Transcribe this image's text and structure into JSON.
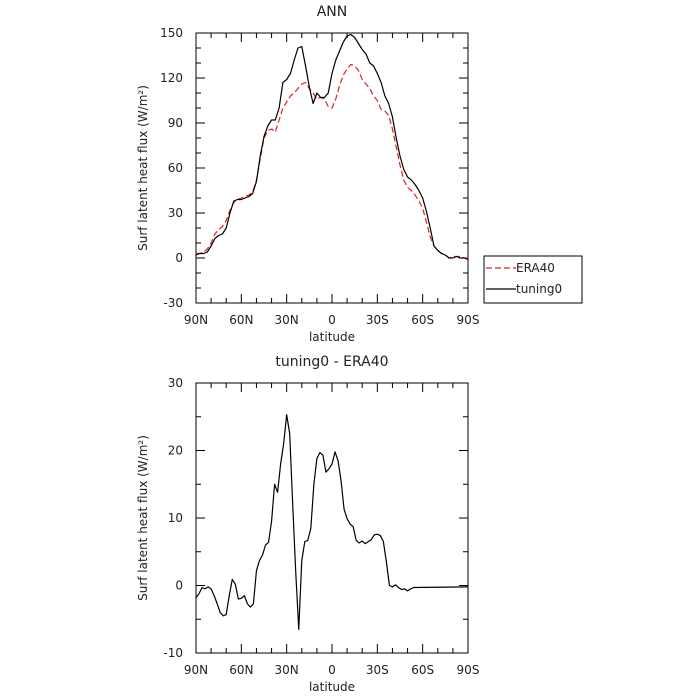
{
  "chart_data": [
    {
      "type": "line",
      "title": "ANN",
      "xlabel": "latitude",
      "ylabel": "Surf latent heat flux (W/m²)",
      "xlim": [
        90,
        -90
      ],
      "ylim": [
        -30,
        150
      ],
      "xticks": [
        90,
        60,
        30,
        0,
        -30,
        -60,
        -90
      ],
      "xtick_labels": [
        "90N",
        "60N",
        "30N",
        "0",
        "30S",
        "60S",
        "90S"
      ],
      "yticks": [
        -30,
        0,
        30,
        60,
        90,
        120,
        150
      ],
      "ytick_labels": [
        "-30",
        "0",
        "30",
        "60",
        "90",
        "120",
        "150"
      ],
      "legend_position": "right",
      "series": [
        {
          "name": "ERA40",
          "color": "#e02020",
          "dash": true,
          "points": [
            [
              90,
              3
            ],
            [
              87.5,
              3
            ],
            [
              85,
              4
            ],
            [
              82.5,
              6
            ],
            [
              80,
              10
            ],
            [
              77.5,
              16
            ],
            [
              75,
              19
            ],
            [
              72.5,
              21
            ],
            [
              70,
              25
            ],
            [
              67.5,
              32
            ],
            [
              65,
              37
            ],
            [
              62.5,
              39
            ],
            [
              60,
              40
            ],
            [
              57.5,
              41
            ],
            [
              55,
              42
            ],
            [
              52.5,
              44
            ],
            [
              50,
              52
            ],
            [
              47.5,
              66
            ],
            [
              45,
              80
            ],
            [
              42.5,
              85
            ],
            [
              40,
              86
            ],
            [
              37.5,
              84
            ],
            [
              35,
              92
            ],
            [
              32.5,
              100
            ],
            [
              30,
              104
            ],
            [
              27.5,
              108
            ],
            [
              25,
              110
            ],
            [
              22.5,
              113
            ],
            [
              20,
              116
            ],
            [
              17.5,
              117
            ],
            [
              15,
              113
            ],
            [
              12.5,
              110
            ],
            [
              10,
              106
            ],
            [
              7.5,
              107
            ],
            [
              5,
              106
            ],
            [
              2.5,
              101
            ],
            [
              0,
              100
            ],
            [
              -2.5,
              106
            ],
            [
              -5,
              115
            ],
            [
              -7.5,
              122
            ],
            [
              -10,
              126
            ],
            [
              -12.5,
              129
            ],
            [
              -15,
              128
            ],
            [
              -17.5,
              125
            ],
            [
              -20,
              119
            ],
            [
              -22.5,
              116
            ],
            [
              -25,
              113
            ],
            [
              -27.5,
              108
            ],
            [
              -30,
              105
            ],
            [
              -32.5,
              99
            ],
            [
              -35,
              98
            ],
            [
              -37.5,
              95
            ],
            [
              -40,
              86
            ],
            [
              -42.5,
              74
            ],
            [
              -45,
              62
            ],
            [
              -47.5,
              52
            ],
            [
              -50,
              47
            ],
            [
              -52.5,
              45
            ],
            [
              -55,
              42
            ],
            [
              -57.5,
              38
            ],
            [
              -60,
              33
            ],
            [
              -62.5,
              24
            ],
            [
              -65,
              14
            ],
            [
              -67.5,
              8
            ],
            [
              -70,
              5
            ],
            [
              -72.5,
              3
            ],
            [
              -75,
              2
            ],
            [
              -77.5,
              0
            ],
            [
              -80,
              1
            ],
            [
              -82.5,
              1
            ],
            [
              -85,
              1
            ],
            [
              -87.5,
              0
            ],
            [
              -90,
              0
            ]
          ]
        },
        {
          "name": "tuning0",
          "color": "#000000",
          "dash": false,
          "points": [
            [
              90,
              2
            ],
            [
              87.5,
              3
            ],
            [
              85,
              3
            ],
            [
              82.5,
              4
            ],
            [
              80,
              8
            ],
            [
              77.5,
              13
            ],
            [
              75,
              15
            ],
            [
              72.5,
              16
            ],
            [
              70,
              20
            ],
            [
              67.5,
              30
            ],
            [
              65,
              38
            ],
            [
              62.5,
              39
            ],
            [
              60,
              39
            ],
            [
              57.5,
              40
            ],
            [
              55,
              41
            ],
            [
              52.5,
              43
            ],
            [
              50,
              51
            ],
            [
              47.5,
              68
            ],
            [
              45,
              81
            ],
            [
              42.5,
              88
            ],
            [
              40,
              92
            ],
            [
              37.5,
              92
            ],
            [
              35,
              100
            ],
            [
              32.5,
              117
            ],
            [
              30,
              119
            ],
            [
              27.5,
              123
            ],
            [
              25,
              132
            ],
            [
              22.5,
              140
            ],
            [
              20,
              141
            ],
            [
              17.5,
              128
            ],
            [
              15,
              114
            ],
            [
              12.5,
              103
            ],
            [
              10,
              110
            ],
            [
              7.5,
              107
            ],
            [
              5,
              107
            ],
            [
              2.5,
              110
            ],
            [
              0,
              123
            ],
            [
              -2.5,
              132
            ],
            [
              -5,
              138
            ],
            [
              -7.5,
              144
            ],
            [
              -10,
              148
            ],
            [
              -12.5,
              149
            ],
            [
              -15,
              147
            ],
            [
              -17.5,
              143
            ],
            [
              -20,
              139
            ],
            [
              -22.5,
              136
            ],
            [
              -25,
              130
            ],
            [
              -27.5,
              128
            ],
            [
              -30,
              123
            ],
            [
              -32.5,
              117
            ],
            [
              -35,
              108
            ],
            [
              -37.5,
              103
            ],
            [
              -40,
              94
            ],
            [
              -42.5,
              80
            ],
            [
              -45,
              68
            ],
            [
              -47.5,
              59
            ],
            [
              -50,
              54
            ],
            [
              -52.5,
              52
            ],
            [
              -55,
              49
            ],
            [
              -57.5,
              45
            ],
            [
              -60,
              40
            ],
            [
              -62.5,
              31
            ],
            [
              -65,
              20
            ],
            [
              -67.5,
              8
            ],
            [
              -70,
              5
            ],
            [
              -72.5,
              3
            ],
            [
              -75,
              2
            ],
            [
              -77.5,
              0
            ],
            [
              -80,
              0
            ],
            [
              -82.5,
              1
            ],
            [
              -85,
              0
            ],
            [
              -87.5,
              0
            ],
            [
              -90,
              -1
            ]
          ]
        }
      ]
    },
    {
      "type": "line",
      "title": "tuning0 - ERA40",
      "xlabel": "latitude",
      "ylabel": "Surf latent heat flux (W/m²)",
      "xlim": [
        90,
        -90
      ],
      "ylim": [
        -10,
        30
      ],
      "xticks": [
        90,
        60,
        30,
        0,
        -30,
        -60,
        -90
      ],
      "xtick_labels": [
        "90N",
        "60N",
        "30N",
        "0",
        "30S",
        "60S",
        "90S"
      ],
      "yticks": [
        -10,
        0,
        10,
        20,
        30
      ],
      "ytick_labels": [
        "-10",
        "0",
        "10",
        "20",
        "30"
      ],
      "series": [
        {
          "color": "#000000",
          "dash": false,
          "points": [
            [
              90,
              -1.8
            ],
            [
              88,
              -1.2
            ],
            [
              86,
              -0.3
            ],
            [
              84,
              -0.5
            ],
            [
              82,
              -0.2
            ],
            [
              80,
              -0.5
            ],
            [
              78,
              -1.5
            ],
            [
              76,
              -2.7
            ],
            [
              74,
              -4.0
            ],
            [
              72,
              -4.5
            ],
            [
              70,
              -4.3
            ],
            [
              68,
              -1.5
            ],
            [
              66,
              0.9
            ],
            [
              64,
              0.2
            ],
            [
              62,
              -2.0
            ],
            [
              60,
              -1.9
            ],
            [
              58,
              -1.5
            ],
            [
              56,
              -2.7
            ],
            [
              54,
              -3.2
            ],
            [
              52,
              -2.7
            ],
            [
              50,
              2.2
            ],
            [
              48,
              3.7
            ],
            [
              46,
              4.5
            ],
            [
              44,
              6.0
            ],
            [
              42,
              6.4
            ],
            [
              40,
              9.5
            ],
            [
              38,
              15.0
            ],
            [
              36,
              13.8
            ],
            [
              34,
              18.0
            ],
            [
              32,
              21.0
            ],
            [
              30,
              25.3
            ],
            [
              28,
              22.5
            ],
            [
              26,
              12.0
            ],
            [
              24,
              2.0
            ],
            [
              22,
              -6.5
            ],
            [
              20,
              3.7
            ],
            [
              18,
              6.5
            ],
            [
              16,
              6.7
            ],
            [
              14,
              8.5
            ],
            [
              12,
              15.0
            ],
            [
              10,
              18.8
            ],
            [
              8,
              19.7
            ],
            [
              6,
              19.3
            ],
            [
              4,
              16.8
            ],
            [
              2,
              17.3
            ],
            [
              0,
              18.0
            ],
            [
              -2,
              19.8
            ],
            [
              -4,
              18.5
            ],
            [
              -6,
              15.5
            ],
            [
              -8,
              11.3
            ],
            [
              -10,
              9.9
            ],
            [
              -12,
              9.1
            ],
            [
              -14,
              8.7
            ],
            [
              -16,
              6.7
            ],
            [
              -18,
              6.3
            ],
            [
              -20,
              6.6
            ],
            [
              -22,
              6.2
            ],
            [
              -24,
              6.5
            ],
            [
              -26,
              6.8
            ],
            [
              -28,
              7.5
            ],
            [
              -30,
              7.6
            ],
            [
              -32,
              7.4
            ],
            [
              -34,
              6.5
            ],
            [
              -36,
              3.5
            ],
            [
              -38,
              0.0
            ],
            [
              -40,
              -0.2
            ],
            [
              -42,
              0.1
            ],
            [
              -44,
              -0.3
            ],
            [
              -46,
              -0.6
            ],
            [
              -48,
              -0.5
            ],
            [
              -50,
              -0.8
            ],
            [
              -52,
              -0.5
            ],
            [
              -54,
              -0.3
            ],
            [
              -90,
              -0.2
            ]
          ]
        }
      ]
    }
  ]
}
